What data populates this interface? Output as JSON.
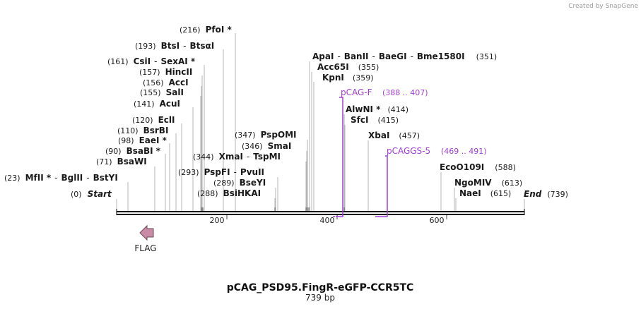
{
  "credit": "Created by SnapGene",
  "title": "pCAG_PSD95.FingR-eGFP-CCR5TC",
  "length_label": "739 bp",
  "colors": {
    "primer": "#a23dd8",
    "feature": "#c98ba6",
    "backbone": "#000000",
    "stem": "#b4b4b4"
  },
  "sequence": {
    "length": 739,
    "ticks": [
      200,
      400,
      600
    ]
  },
  "ends": [
    {
      "pos": "(0)",
      "name": "Start"
    },
    {
      "pos": "(739)",
      "name": "End"
    }
  ],
  "sites": [
    {
      "pos": "(23)",
      "names": [
        "MfII *",
        "BglII",
        "BstYI"
      ]
    },
    {
      "pos": "(71)",
      "names": [
        "BsaWI"
      ]
    },
    {
      "pos": "(90)",
      "names": [
        "BsaBI *"
      ]
    },
    {
      "pos": "(98)",
      "names": [
        "EaeI *"
      ]
    },
    {
      "pos": "(110)",
      "names": [
        "BsrBI"
      ]
    },
    {
      "pos": "(120)",
      "names": [
        "EclI"
      ]
    },
    {
      "pos": "(141)",
      "names": [
        "AcuI"
      ]
    },
    {
      "pos": "(155)",
      "names": [
        "SalI"
      ]
    },
    {
      "pos": "(156)",
      "names": [
        "AccI"
      ]
    },
    {
      "pos": "(157)",
      "names": [
        "HincII"
      ]
    },
    {
      "pos": "(161)",
      "names": [
        "CsiI",
        "SexAI *"
      ]
    },
    {
      "pos": "(193)",
      "names": [
        "BtsI",
        "BtsαI"
      ]
    },
    {
      "pos": "(216)",
      "names": [
        "PfoI *"
      ]
    },
    {
      "pos": "(288)",
      "names": [
        "BsiHKAI"
      ]
    },
    {
      "pos": "(289)",
      "names": [
        "BseYI"
      ]
    },
    {
      "pos": "(293)",
      "names": [
        "PspFI",
        "PvuII"
      ]
    },
    {
      "pos": "(344)",
      "names": [
        "XmaI",
        "TspMI"
      ]
    },
    {
      "pos": "(346)",
      "names": [
        "SmaI"
      ]
    },
    {
      "pos": "(347)",
      "names": [
        "PspOMI"
      ]
    },
    {
      "pos": "(351)",
      "names": [
        "ApaI",
        "BanII",
        "BaeGI",
        "Bme1580I"
      ]
    },
    {
      "pos": "(355)",
      "names": [
        "Acc65I"
      ]
    },
    {
      "pos": "(359)",
      "names": [
        "KpnI"
      ]
    },
    {
      "pos": "(414)",
      "names": [
        "AlwNI *"
      ]
    },
    {
      "pos": "(415)",
      "names": [
        "SfcI"
      ]
    },
    {
      "pos": "(457)",
      "names": [
        "XbaI"
      ]
    },
    {
      "pos": "(588)",
      "names": [
        "EcoO109I"
      ]
    },
    {
      "pos": "(613)",
      "names": [
        "NgoMIV"
      ]
    },
    {
      "pos": "(615)",
      "names": [
        "NaeI"
      ]
    }
  ],
  "primers": [
    {
      "name": "pCAG-F",
      "range": "(388 .. 407)"
    },
    {
      "name": "pCAGGS-5",
      "range": "(469 .. 491)"
    }
  ],
  "features": [
    {
      "name": "FLAG",
      "direction": "reverse"
    }
  ]
}
